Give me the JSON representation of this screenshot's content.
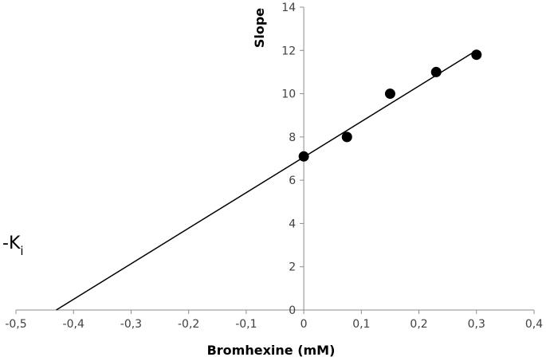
{
  "chart_data": {
    "type": "scatter",
    "title": "",
    "xlabel": "Bromhexine (mM)",
    "ylabel": "Slope",
    "xlim": [
      -0.5,
      0.4
    ],
    "ylim": [
      0,
      14
    ],
    "x_ticks": [
      -0.5,
      -0.4,
      -0.3,
      -0.2,
      -0.1,
      0,
      0.1,
      0.2,
      0.3,
      0.4
    ],
    "x_tick_labels": [
      "-0,5",
      "-0,4",
      "-0,3",
      "-0,2",
      "-0,1",
      "0",
      "0,1",
      "0,2",
      "0,3",
      "0,4"
    ],
    "y_ticks": [
      0,
      2,
      4,
      6,
      8,
      10,
      12,
      14
    ],
    "y_tick_labels": [
      "0",
      "2",
      "4",
      "6",
      "8",
      "10",
      "12",
      "14"
    ],
    "grid": false,
    "legend": "none",
    "series": [
      {
        "x": [
          0,
          0.075,
          0.15,
          0.23,
          0.3
        ],
        "y": [
          7.1,
          8.0,
          10.0,
          11.0,
          11.8
        ],
        "marker": "circle",
        "color": "#000000"
      }
    ],
    "trendline": {
      "type": "linear",
      "x": [
        -0.43,
        0.3
      ],
      "y": [
        0,
        12.0
      ],
      "color": "#000000"
    },
    "annotations": [
      {
        "text": "-K",
        "subscript": "i"
      }
    ]
  }
}
